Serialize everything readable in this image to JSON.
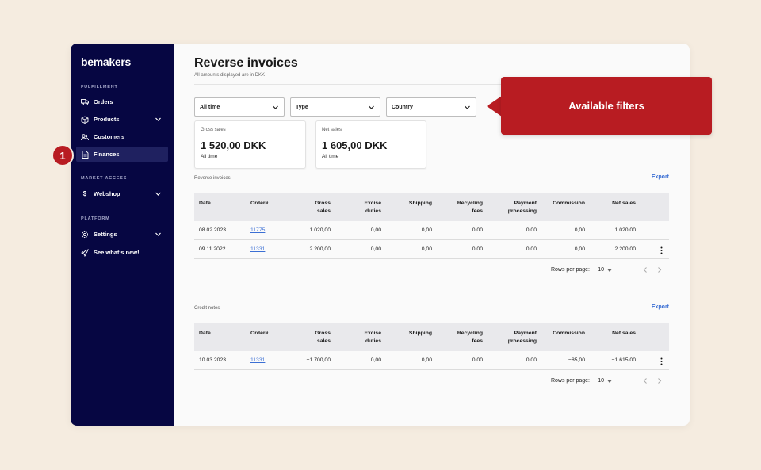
{
  "app": {
    "logo": "bemakers",
    "colors": {
      "sidebar": "#060642",
      "accent": "#3b6fd4",
      "callout": "#b81c22",
      "background": "#f5ece0"
    }
  },
  "sidebar": {
    "sections": [
      {
        "label": "FULFILLMENT"
      },
      {
        "label": "MARKET ACCESS"
      },
      {
        "label": "PLATFORM"
      }
    ],
    "items": [
      {
        "label": "Orders",
        "icon": "truck-icon"
      },
      {
        "label": "Products",
        "icon": "box-icon",
        "expandable": true
      },
      {
        "label": "Customers",
        "icon": "users-icon"
      },
      {
        "label": "Finances",
        "icon": "document-icon",
        "active": true
      },
      {
        "label": "Webshop",
        "icon": "dollar-icon",
        "expandable": true
      },
      {
        "label": "Settings",
        "icon": "gear-icon",
        "expandable": true
      },
      {
        "label": "See what's new!",
        "icon": "rocket-icon"
      }
    ]
  },
  "page": {
    "title": "Reverse invoices",
    "subtitle": "All amounts displayed are in DKK"
  },
  "filters": [
    {
      "value": "All time"
    },
    {
      "value": "Type"
    },
    {
      "value": "Country"
    }
  ],
  "stats": [
    {
      "label": "Gross sales",
      "value": "1 520,00 DKK",
      "period": "All time"
    },
    {
      "label": "Net sales",
      "value": "1 605,00 DKK",
      "period": "All time"
    }
  ],
  "tables": {
    "columns": [
      "Date",
      "Order#",
      "Gross sales",
      "Excise duties",
      "Shipping",
      "Recycling fees",
      "Payment processing",
      "Commission",
      "Net sales"
    ],
    "reverse_invoices": {
      "title": "Reverse invoices",
      "export_label": "Export",
      "rows": [
        [
          "08.02.2023",
          "11775",
          "1 020,00",
          "0,00",
          "0,00",
          "0,00",
          "0,00",
          "0,00",
          "1 020,00"
        ],
        [
          "09.11.2022",
          "11331",
          "2 200,00",
          "0,00",
          "0,00",
          "0,00",
          "0,00",
          "0,00",
          "2 200,00"
        ]
      ],
      "rows_per_page_label": "Rows per page:",
      "rows_per_page": "10"
    },
    "credit_notes": {
      "title": "Credit notes",
      "export_label": "Export",
      "rows": [
        [
          "10.03.2023",
          "11331",
          "−1 700,00",
          "0,00",
          "0,00",
          "0,00",
          "0,00",
          "−85,00",
          "−1 615,00"
        ]
      ],
      "rows_per_page_label": "Rows per page:",
      "rows_per_page": "10"
    }
  },
  "annotations": {
    "callout": "Available filters",
    "badge": "1"
  }
}
